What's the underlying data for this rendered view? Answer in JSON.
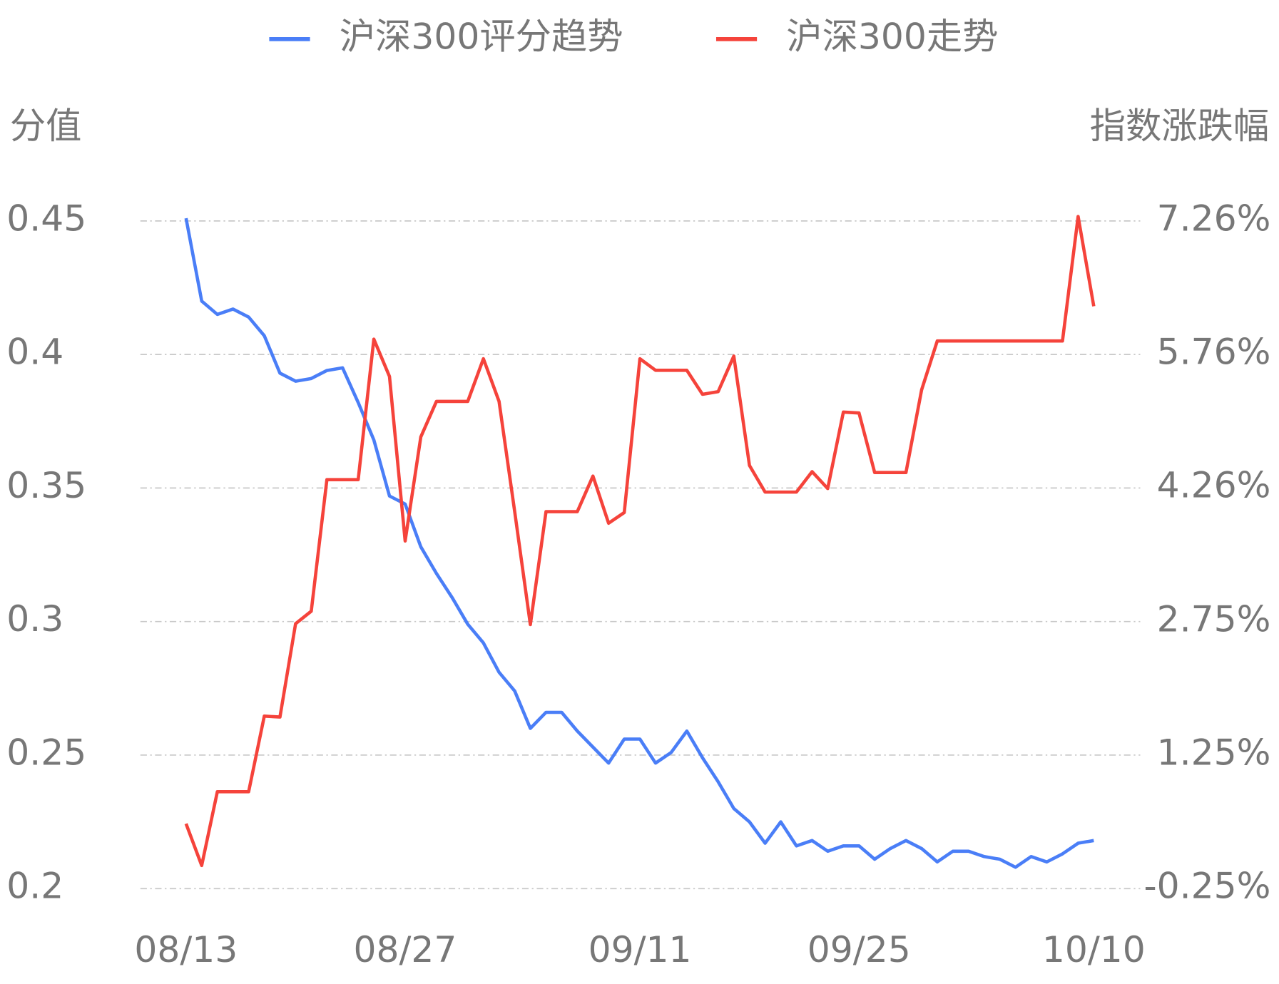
{
  "chart_data": {
    "type": "line",
    "y_label": "分值",
    "y2_label": "指数涨跌幅",
    "categories": [
      "08/13",
      null,
      null,
      null,
      null,
      null,
      null,
      null,
      null,
      null,
      null,
      null,
      null,
      null,
      "08/27",
      null,
      null,
      null,
      null,
      null,
      null,
      null,
      null,
      null,
      null,
      null,
      null,
      null,
      null,
      "09/11",
      null,
      null,
      null,
      null,
      null,
      null,
      null,
      null,
      null,
      null,
      null,
      null,
      null,
      "09/25",
      null,
      null,
      null,
      null,
      null,
      null,
      null,
      null,
      null,
      null,
      null,
      null,
      null,
      null,
      "10/10"
    ],
    "ylim": [
      0.2,
      0.45
    ],
    "yticks": [
      0.2,
      0.25,
      0.3,
      0.35,
      0.4,
      0.45
    ],
    "y2lim": [
      -0.25,
      7.26
    ],
    "y2ticks": [
      {
        "value": -0.25,
        "label": "-0.25%"
      },
      {
        "value": 1.25,
        "label": "1.25%"
      },
      {
        "value": 2.75,
        "label": "2.75%"
      },
      {
        "value": 4.26,
        "label": "4.26%"
      },
      {
        "value": 5.76,
        "label": "5.76%"
      },
      {
        "value": 7.26,
        "label": "7.26%"
      }
    ],
    "grid": true,
    "series": [
      {
        "name": "沪深300评分趋势",
        "color": "#4a7ef7",
        "values": [
          0.451,
          0.42,
          0.415,
          0.417,
          0.414,
          0.407,
          0.393,
          0.39,
          0.391,
          0.394,
          0.395,
          0.382,
          0.368,
          0.347,
          0.344,
          0.328,
          0.318,
          0.309,
          0.299,
          0.292,
          0.281,
          0.274,
          0.26,
          0.266,
          0.266,
          0.259,
          0.253,
          0.247,
          0.256,
          0.256,
          0.247,
          0.251,
          0.259,
          0.249,
          0.24,
          0.23,
          0.225,
          0.217,
          0.225,
          0.216,
          0.218,
          0.214,
          0.216,
          0.216,
          0.211,
          0.215,
          0.218,
          0.215,
          0.21,
          0.214,
          0.214,
          0.212,
          0.211,
          0.208,
          0.212,
          0.21,
          0.213,
          0.217,
          0.218
        ]
      },
      {
        "name": "沪深300走势",
        "color": "#f5433b",
        "axis": "y2",
        "values": [
          0.48,
          0.01,
          0.84,
          0.84,
          0.84,
          1.69,
          1.68,
          2.73,
          2.87,
          4.35,
          4.35,
          4.35,
          5.93,
          5.51,
          3.66,
          4.83,
          5.23,
          5.23,
          5.23,
          5.71,
          5.23,
          3.99,
          2.72,
          3.99,
          3.99,
          3.99,
          4.39,
          3.86,
          3.98,
          5.71,
          5.58,
          5.58,
          5.58,
          5.31,
          5.34,
          5.74,
          4.51,
          4.21,
          4.21,
          4.21,
          4.44,
          4.25,
          5.11,
          5.1,
          4.43,
          4.43,
          4.43,
          5.36,
          5.91,
          5.91,
          5.91,
          5.91,
          5.91,
          5.91,
          5.91,
          5.91,
          5.91,
          7.31,
          6.3
        ]
      }
    ]
  }
}
